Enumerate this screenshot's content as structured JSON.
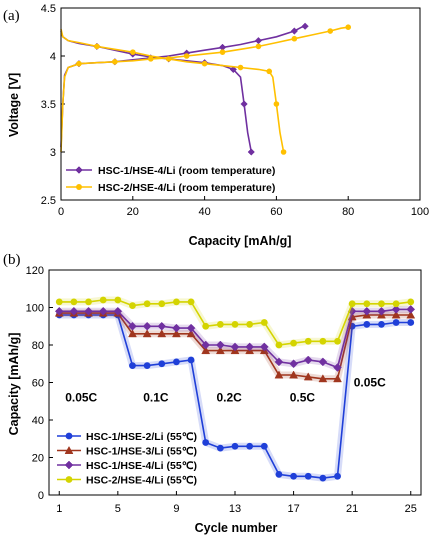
{
  "chart_data": [
    {
      "panel": "(a)",
      "type": "line",
      "xlabel": "Capacity [mAh/g]",
      "ylabel": "Voltage [V]",
      "xlim": [
        0,
        100
      ],
      "ylim": [
        2.5,
        4.5
      ],
      "xticks": [
        0,
        20,
        40,
        60,
        80,
        100
      ],
      "yticks": [
        2.5,
        3,
        3.5,
        4,
        4.5
      ],
      "grid": false,
      "legend_position": "bottom-left",
      "series": [
        {
          "name": "HSC-1/HSE-4/Li (room temperature)",
          "color": "#7030a0",
          "marker": "diamond",
          "charge": [
            [
              0,
              3.05
            ],
            [
              0.5,
              3.5
            ],
            [
              1,
              3.8
            ],
            [
              2,
              3.88
            ],
            [
              5,
              3.92
            ],
            [
              10,
              3.93
            ],
            [
              15,
              3.94
            ],
            [
              20,
              3.96
            ],
            [
              25,
              3.98
            ],
            [
              30,
              4.0
            ],
            [
              35,
              4.03
            ],
            [
              40,
              4.06
            ],
            [
              45,
              4.09
            ],
            [
              50,
              4.12
            ],
            [
              55,
              4.16
            ],
            [
              60,
              4.2
            ],
            [
              65,
              4.26
            ],
            [
              67,
              4.3
            ],
            [
              68,
              4.31
            ]
          ],
          "discharge": [
            [
              0,
              4.26
            ],
            [
              0.5,
              4.2
            ],
            [
              2,
              4.16
            ],
            [
              5,
              4.13
            ],
            [
              10,
              4.1
            ],
            [
              15,
              4.06
            ],
            [
              20,
              4.02
            ],
            [
              25,
              3.99
            ],
            [
              30,
              3.97
            ],
            [
              35,
              3.95
            ],
            [
              40,
              3.93
            ],
            [
              45,
              3.9
            ],
            [
              48,
              3.86
            ],
            [
              50,
              3.78
            ],
            [
              51,
              3.5
            ],
            [
              52,
              3.2
            ],
            [
              53,
              3.0
            ]
          ]
        },
        {
          "name": "HSC-2/HSE-4/Li (room temperature)",
          "color": "#ffc000",
          "marker": "circle",
          "charge": [
            [
              0,
              3.0
            ],
            [
              0.5,
              3.5
            ],
            [
              1,
              3.78
            ],
            [
              2,
              3.88
            ],
            [
              5,
              3.92
            ],
            [
              10,
              3.93
            ],
            [
              15,
              3.94
            ],
            [
              20,
              3.95
            ],
            [
              25,
              3.97
            ],
            [
              30,
              3.98
            ],
            [
              35,
              4.0
            ],
            [
              40,
              4.02
            ],
            [
              45,
              4.04
            ],
            [
              50,
              4.07
            ],
            [
              55,
              4.1
            ],
            [
              60,
              4.14
            ],
            [
              65,
              4.18
            ],
            [
              70,
              4.22
            ],
            [
              75,
              4.26
            ],
            [
              78,
              4.29
            ],
            [
              80,
              4.3
            ]
          ],
          "discharge": [
            [
              0,
              4.28
            ],
            [
              0.5,
              4.2
            ],
            [
              2,
              4.16
            ],
            [
              5,
              4.14
            ],
            [
              10,
              4.1
            ],
            [
              15,
              4.07
            ],
            [
              20,
              4.04
            ],
            [
              25,
              4.0
            ],
            [
              30,
              3.97
            ],
            [
              35,
              3.94
            ],
            [
              40,
              3.92
            ],
            [
              45,
              3.9
            ],
            [
              50,
              3.88
            ],
            [
              55,
              3.86
            ],
            [
              58,
              3.84
            ],
            [
              59,
              3.78
            ],
            [
              60,
              3.5
            ],
            [
              61,
              3.2
            ],
            [
              62,
              3.0
            ]
          ]
        }
      ]
    },
    {
      "panel": "(b)",
      "type": "line",
      "xlabel": "Cycle number",
      "ylabel": "Capacity [mAh/g]",
      "xlim": [
        0.3,
        25.7
      ],
      "ylim": [
        0,
        120
      ],
      "xticks": [
        1,
        5,
        9,
        13,
        17,
        21,
        25
      ],
      "yticks": [
        0,
        20,
        40,
        60,
        80,
        100,
        120
      ],
      "grid": false,
      "legend_position": "bottom-left",
      "x": [
        1,
        2,
        3,
        4,
        5,
        6,
        7,
        8,
        9,
        10,
        11,
        12,
        13,
        14,
        15,
        16,
        17,
        18,
        19,
        20,
        21,
        22,
        23,
        24,
        25
      ],
      "annotations": [
        {
          "text": "0.05C",
          "x": 2.5,
          "y": 50
        },
        {
          "text": "0.1C",
          "x": 7.6,
          "y": 50
        },
        {
          "text": "0.2C",
          "x": 12.6,
          "y": 50
        },
        {
          "text": "0.5C",
          "x": 17.6,
          "y": 50
        },
        {
          "text": "0.05C",
          "x": 22.2,
          "y": 58
        }
      ],
      "series": [
        {
          "name": "HSC-1/HSE-2/Li (55℃)",
          "color": "#1f3fd8",
          "marker": "circle",
          "values": [
            96,
            96,
            96,
            96,
            96,
            69,
            69,
            70,
            71,
            72,
            28,
            25,
            26,
            26,
            26,
            11,
            10,
            10,
            9,
            10,
            90,
            91,
            91,
            92,
            92
          ]
        },
        {
          "name": "HSC-1/HSE-3/Li (55℃)",
          "color": "#a0361e",
          "marker": "triangle",
          "values": [
            97,
            97,
            97,
            97,
            97,
            86,
            86,
            86,
            86,
            86,
            77,
            77,
            77,
            77,
            77,
            64,
            64,
            63,
            62,
            62,
            95,
            96,
            96,
            96,
            96
          ]
        },
        {
          "name": "HSC-1/HSE-4/Li (55℃)",
          "color": "#7030a0",
          "marker": "diamond",
          "values": [
            98,
            98,
            98,
            98,
            98,
            90,
            90,
            90,
            89,
            89,
            80,
            80,
            79,
            79,
            79,
            71,
            70,
            72,
            71,
            68,
            98,
            98,
            98,
            99,
            99
          ]
        },
        {
          "name": "HSC-2/HSE-4/Li (55℃)",
          "color": "#d4d400",
          "marker": "circle",
          "values": [
            103,
            103,
            103,
            104,
            104,
            101,
            102,
            102,
            103,
            103,
            90,
            91,
            91,
            91,
            92,
            80,
            81,
            82,
            82,
            82,
            102,
            102,
            102,
            102,
            103
          ]
        }
      ]
    }
  ]
}
